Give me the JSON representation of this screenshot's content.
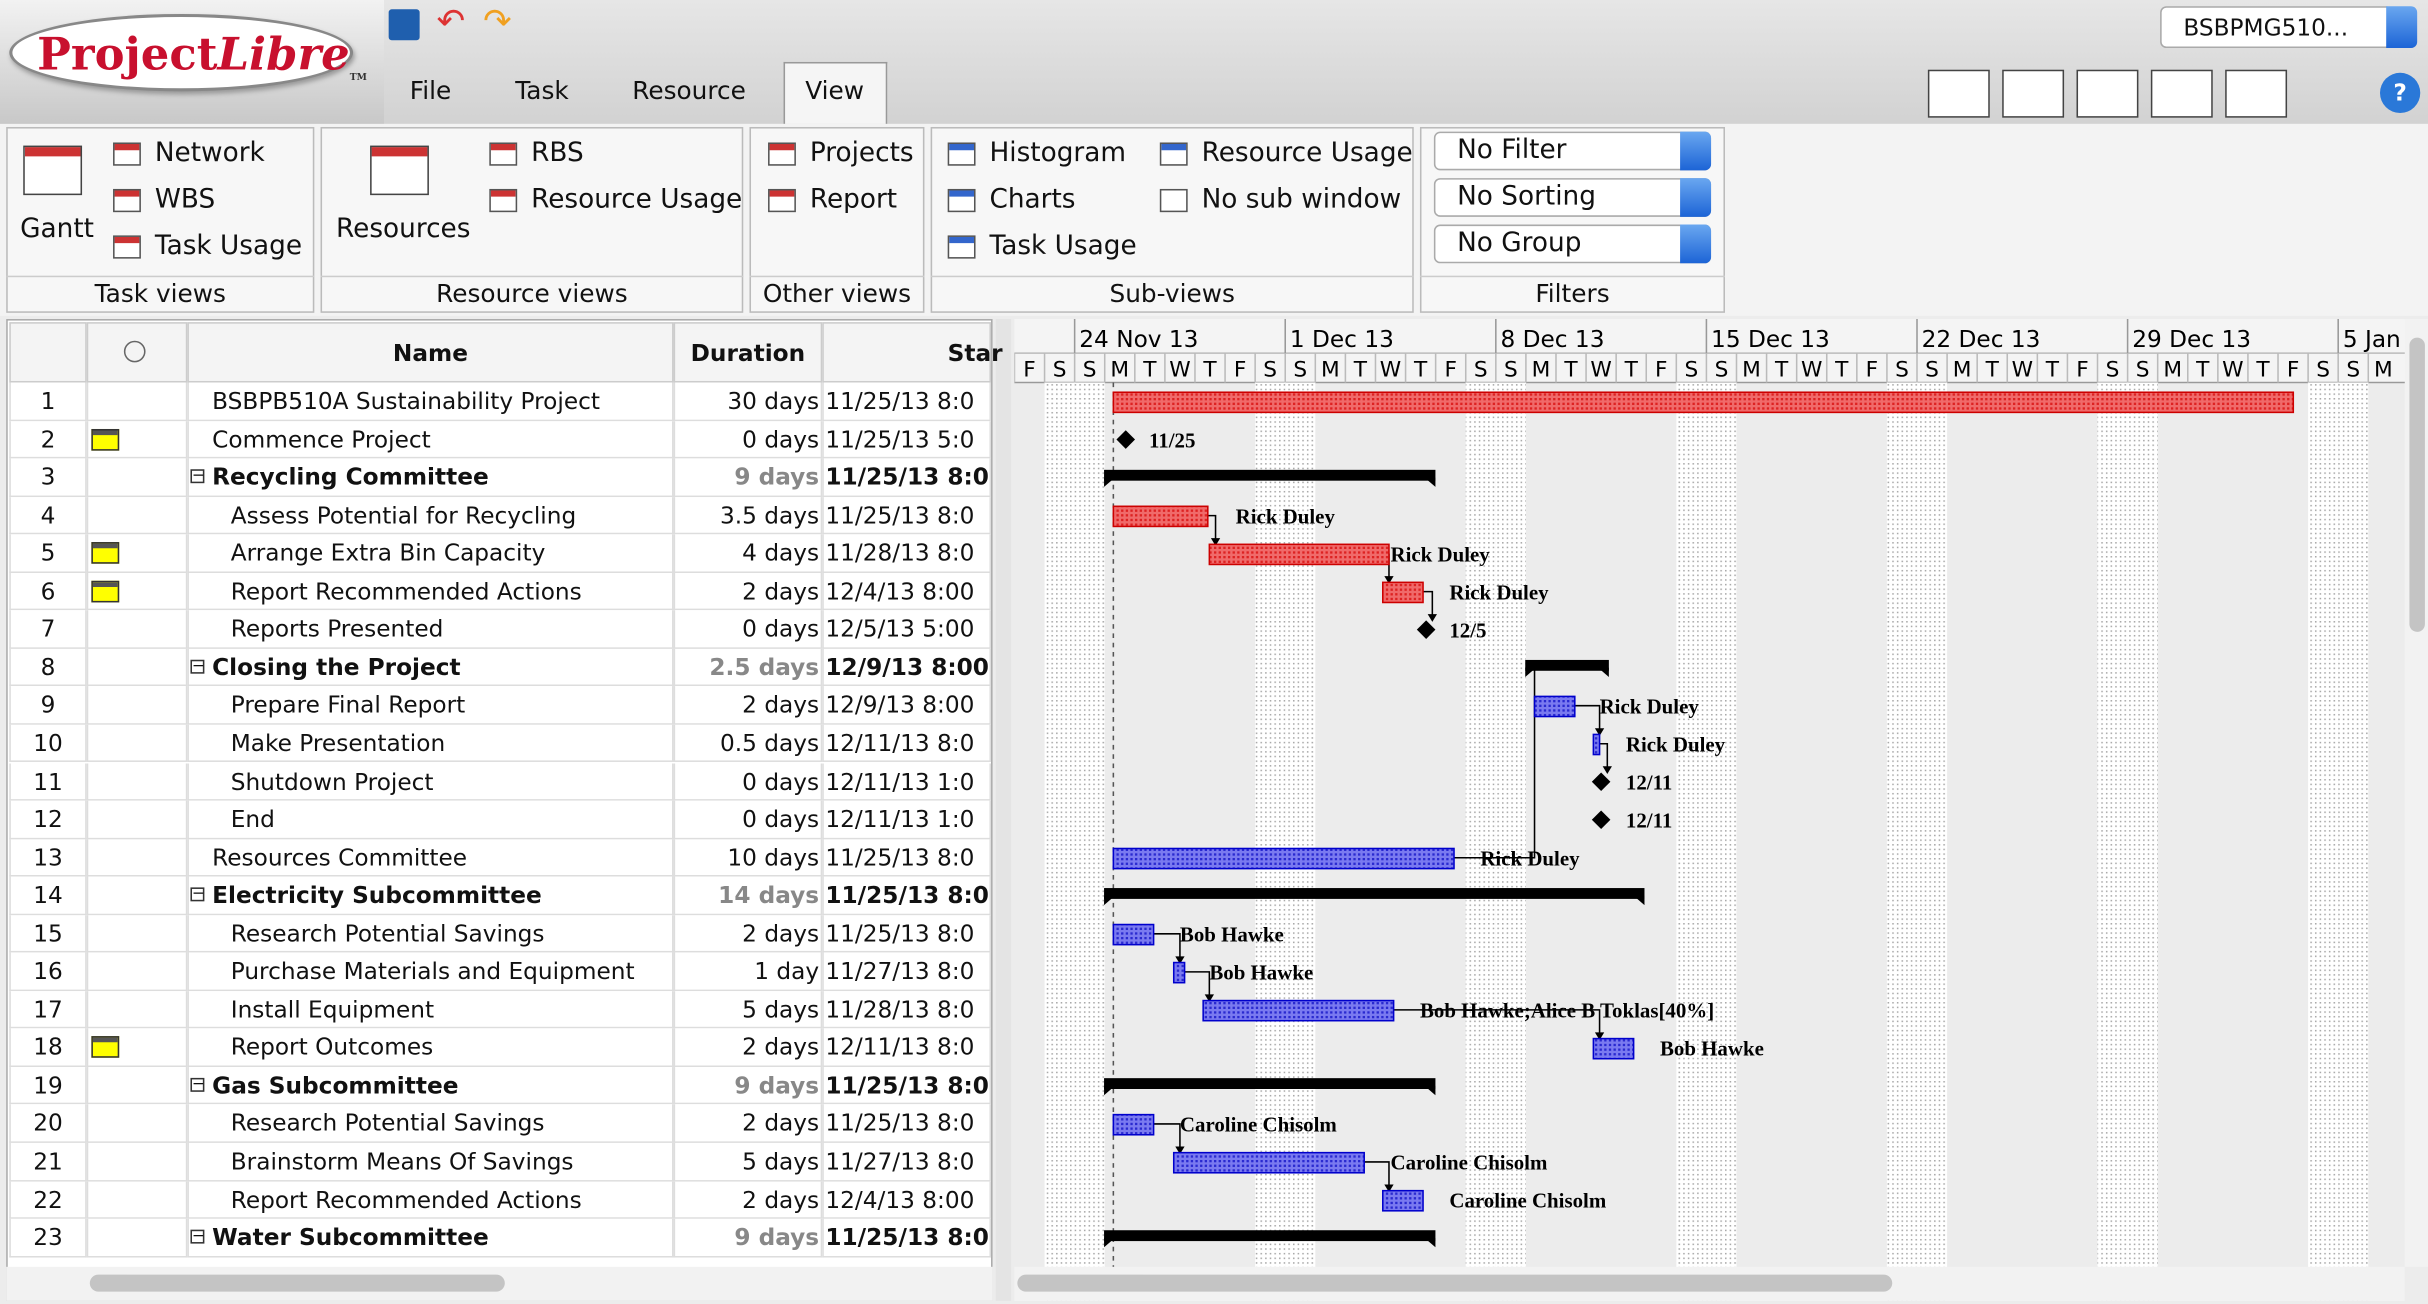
{
  "logo": {
    "project": "Project",
    "libre": "Libre",
    "tm": "TM"
  },
  "project_selector": "BSBPMG510...",
  "menu": [
    "File",
    "Task",
    "Resource",
    "View"
  ],
  "ribbon": [
    {
      "label": "Task views",
      "items": [
        "Gantt",
        "Network",
        "WBS",
        "Task Usage"
      ]
    },
    {
      "label": "Resource views",
      "items": [
        "Resources",
        "RBS",
        "Resource Usage"
      ]
    },
    {
      "label": "Other views",
      "items": [
        "Projects",
        "Report"
      ]
    },
    {
      "label": "Sub-views",
      "items": [
        "Histogram",
        "Charts",
        "Task Usage",
        "Resource Usage",
        "No sub window"
      ]
    },
    {
      "label": "Filters",
      "items": [
        "No Filter",
        "No Sorting",
        "No Group"
      ]
    }
  ],
  "table": {
    "columns": [
      "Name",
      "Duration",
      "Star"
    ],
    "rows": [
      {
        "id": "1",
        "name": "BSBPB510A Sustainability Project",
        "duration": "30 days",
        "start": "11/25/13 8:0",
        "level": 1
      },
      {
        "id": "2",
        "name": "Commence Project",
        "duration": "0 days",
        "start": "11/25/13 5:0",
        "level": 1,
        "note": true,
        "bar_label": "11/25"
      },
      {
        "id": "3",
        "name": "Recycling Committee",
        "duration": "9 days",
        "start": "11/25/13 8:0",
        "level": 1,
        "summary": true
      },
      {
        "id": "4",
        "name": "Assess Potential for Recycling",
        "duration": "3.5 days",
        "start": "11/25/13 8:0",
        "level": 2,
        "bar_label": "Rick Duley"
      },
      {
        "id": "5",
        "name": "Arrange Extra Bin Capacity",
        "duration": "4 days",
        "start": "11/28/13 8:0",
        "level": 2,
        "note": true,
        "bar_label": "Rick Duley"
      },
      {
        "id": "6",
        "name": "Report Recommended Actions",
        "duration": "2 days",
        "start": "12/4/13 8:00",
        "level": 2,
        "note": true,
        "bar_label": "Rick Duley"
      },
      {
        "id": "7",
        "name": "Reports Presented",
        "duration": "0 days",
        "start": "12/5/13 5:00",
        "level": 2,
        "bar_label": "12/5"
      },
      {
        "id": "8",
        "name": "Closing the Project",
        "duration": "2.5 days",
        "start": "12/9/13 8:00",
        "level": 1,
        "summary": true
      },
      {
        "id": "9",
        "name": "Prepare Final Report",
        "duration": "2 days",
        "start": "12/9/13 8:00",
        "level": 2,
        "bar_label": "Rick Duley"
      },
      {
        "id": "10",
        "name": "Make Presentation",
        "duration": "0.5 days",
        "start": "12/11/13 8:0",
        "level": 2,
        "bar_label": "Rick Duley"
      },
      {
        "id": "11",
        "name": "Shutdown Project",
        "duration": "0 days",
        "start": "12/11/13 1:0",
        "level": 2,
        "bar_label": "12/11"
      },
      {
        "id": "12",
        "name": "End",
        "duration": "0 days",
        "start": "12/11/13 1:0",
        "level": 2,
        "bar_label": "12/11"
      },
      {
        "id": "13",
        "name": "Resources Committee",
        "duration": "10 days",
        "start": "11/25/13 8:0",
        "level": 1,
        "bar_label": "Rick Duley"
      },
      {
        "id": "14",
        "name": "Electricity Subcommittee",
        "duration": "14 days",
        "start": "11/25/13 8:0",
        "level": 1,
        "summary": true
      },
      {
        "id": "15",
        "name": "Research Potential Savings",
        "duration": "2 days",
        "start": "11/25/13 8:0",
        "level": 2,
        "bar_label": "Bob Hawke"
      },
      {
        "id": "16",
        "name": "Purchase Materials and Equipment",
        "duration": "1 day",
        "start": "11/27/13 8:0",
        "level": 2,
        "bar_label": "Bob Hawke"
      },
      {
        "id": "17",
        "name": "Install Equipment",
        "duration": "5 days",
        "start": "11/28/13 8:0",
        "level": 2,
        "bar_label": "Bob Hawke;Alice B Toklas[40%]"
      },
      {
        "id": "18",
        "name": "Report Outcomes",
        "duration": "2 days",
        "start": "12/11/13 8:0",
        "level": 2,
        "note": true,
        "bar_label": "Bob Hawke"
      },
      {
        "id": "19",
        "name": "Gas Subcommittee",
        "duration": "9 days",
        "start": "11/25/13 8:0",
        "level": 1,
        "summary": true
      },
      {
        "id": "20",
        "name": "Research Potential Savings",
        "duration": "2 days",
        "start": "11/25/13 8:0",
        "level": 2,
        "bar_label": "Caroline Chisolm"
      },
      {
        "id": "21",
        "name": "Brainstorm Means Of Savings",
        "duration": "5 days",
        "start": "11/27/13 8:0",
        "level": 2,
        "bar_label": "Caroline Chisolm"
      },
      {
        "id": "22",
        "name": "Report Recommended Actions",
        "duration": "2 days",
        "start": "12/4/13 8:00",
        "level": 2,
        "bar_label": "Caroline Chisolm"
      },
      {
        "id": "23",
        "name": "Water Subcommittee",
        "duration": "9 days",
        "start": "11/25/13 8:0",
        "level": 1,
        "summary": true
      }
    ]
  },
  "timeline": {
    "weeks": [
      "24 Nov 13",
      "1 Dec 13",
      "8 Dec 13",
      "15 Dec 13",
      "22 Dec 13",
      "29 Dec 13",
      "5 Jan"
    ],
    "days": [
      "S",
      "M",
      "T",
      "W",
      "T",
      "F",
      "S"
    ]
  }
}
